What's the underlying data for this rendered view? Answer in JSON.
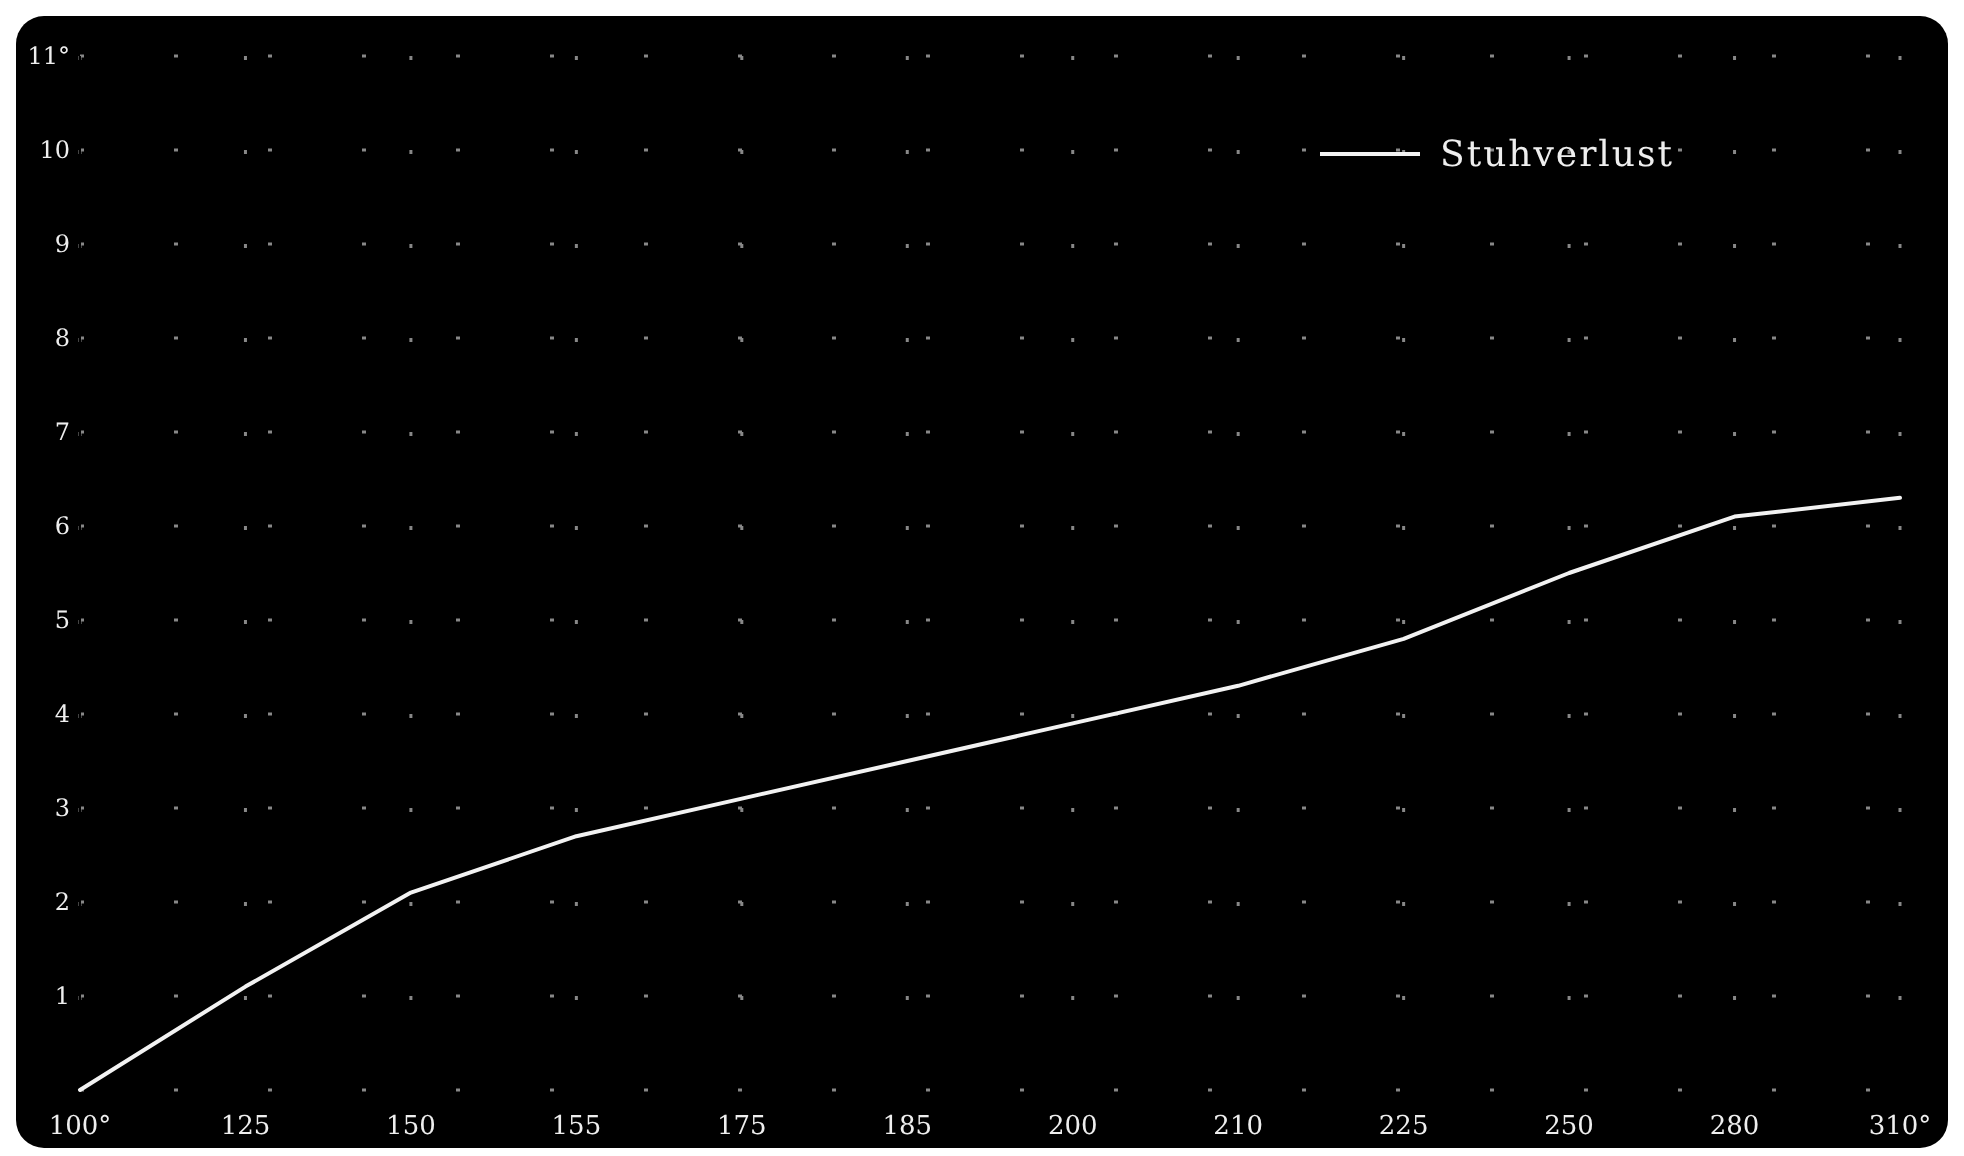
{
  "chart_data": {
    "type": "line",
    "categories": [
      "100°",
      "125",
      "150",
      "155",
      "175",
      "185",
      "200",
      "210",
      "225",
      "250",
      "280",
      "310°"
    ],
    "series": [
      {
        "name": "Stuhverlust",
        "color": "#f2f2f2",
        "values": [
          0,
          1.1,
          2.1,
          2.7,
          3.1,
          3.5,
          3.9,
          4.3,
          4.8,
          5.5,
          6.1,
          6.3
        ]
      }
    ],
    "ylim": [
      0,
      11
    ],
    "yticks": [
      {
        "value": 0,
        "label": null
      },
      1,
      2,
      3,
      4,
      5,
      6,
      7,
      8,
      9,
      10,
      {
        "value": 11,
        "label": "11°"
      }
    ],
    "grid": true,
    "legend": "top right",
    "marker": "none",
    "line_style": "solid"
  }
}
